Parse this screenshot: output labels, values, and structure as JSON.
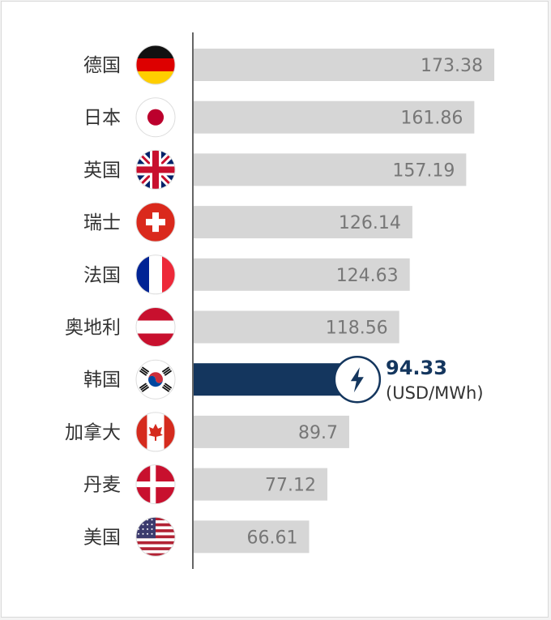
{
  "chart_data": {
    "type": "bar",
    "orientation": "horizontal",
    "categories": [
      "德国",
      "日本",
      "英国",
      "瑞士",
      "法国",
      "奥地利",
      "韩国",
      "加拿大",
      "丹麦",
      "美国"
    ],
    "values": [
      173.38,
      161.86,
      157.19,
      126.14,
      124.63,
      118.56,
      94.33,
      89.7,
      77.12,
      66.61
    ],
    "value_labels": [
      "173.38",
      "161.86",
      "157.19",
      "126.14",
      "124.63",
      "118.56",
      "94.33",
      "89.7",
      "77.12",
      "66.61"
    ],
    "flags": [
      "germany-flag",
      "japan-flag",
      "uk-flag",
      "switzerland-flag",
      "france-flag",
      "austria-flag",
      "south-korea-flag",
      "canada-flag",
      "denmark-flag",
      "usa-flag"
    ],
    "highlight_index": 6,
    "highlight_unit": "(USD/MWh)",
    "highlight_icon": "lightning-bolt-icon",
    "xlim": [
      0,
      180
    ],
    "colors": {
      "bar": "#d6d6d6",
      "highlight": "#14365e",
      "axis": "#333333"
    }
  }
}
